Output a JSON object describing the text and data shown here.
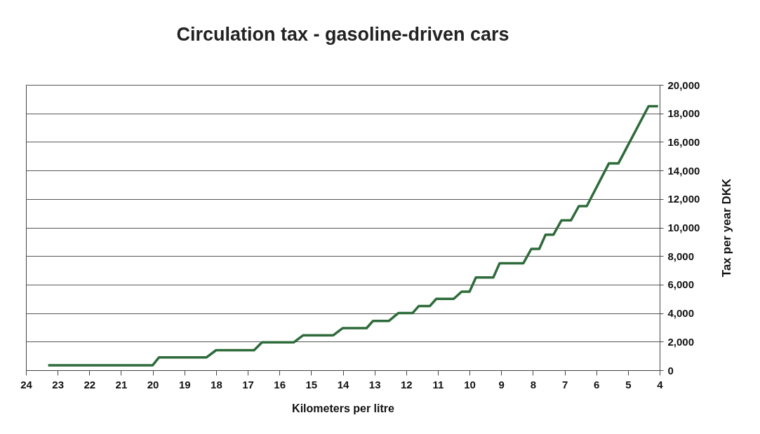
{
  "chart_data": {
    "type": "line",
    "title": "Circulation tax - gasoline-driven cars",
    "xlabel": "Kilometers per litre",
    "ylabel": "Tax per year DKK",
    "x": [
      23.3,
      20.0,
      19.8,
      18.3,
      18.0,
      16.8,
      16.55,
      15.55,
      15.25,
      14.3,
      14.0,
      13.25,
      13.05,
      12.55,
      12.25,
      11.8,
      11.6,
      11.25,
      11.05,
      10.5,
      10.25,
      10.0,
      9.8,
      9.25,
      9.05,
      8.3,
      8.05,
      7.8,
      7.6,
      7.35,
      7.1,
      6.8,
      6.55,
      6.3,
      5.6,
      5.3,
      4.35,
      4.05
    ],
    "series": [
      {
        "color": "#2e6b3a",
        "values": [
          350,
          350,
          900,
          900,
          1400,
          1400,
          1950,
          1950,
          2450,
          2450,
          2950,
          2950,
          3450,
          3450,
          4000,
          4000,
          4500,
          4500,
          5000,
          5000,
          5500,
          5500,
          6500,
          6500,
          7500,
          7500,
          8500,
          8500,
          9500,
          9500,
          10500,
          10500,
          11500,
          11500,
          14500,
          14500,
          18500,
          18500
        ]
      }
    ],
    "xlim": [
      24,
      4
    ],
    "xticks": [
      24,
      23,
      22,
      21,
      20,
      19,
      18,
      17,
      16,
      15,
      14,
      13,
      12,
      11,
      10,
      9,
      8,
      7,
      6,
      5,
      4
    ],
    "ylim": [
      0,
      20000
    ],
    "yticks": [
      {
        "value": 0,
        "label": "0"
      },
      {
        "value": 2000,
        "label": "2,000"
      },
      {
        "value": 4000,
        "label": "4,000"
      },
      {
        "value": 6000,
        "label": "6,000"
      },
      {
        "value": 8000,
        "label": "8,000"
      },
      {
        "value": 10000,
        "label": "10,000"
      },
      {
        "value": 12000,
        "label": "12,000"
      },
      {
        "value": 14000,
        "label": "14,000"
      },
      {
        "value": 16000,
        "label": "16,000"
      },
      {
        "value": 18000,
        "label": "18,000"
      },
      {
        "value": 20000,
        "label": "20,000"
      }
    ],
    "grid": "y"
  }
}
